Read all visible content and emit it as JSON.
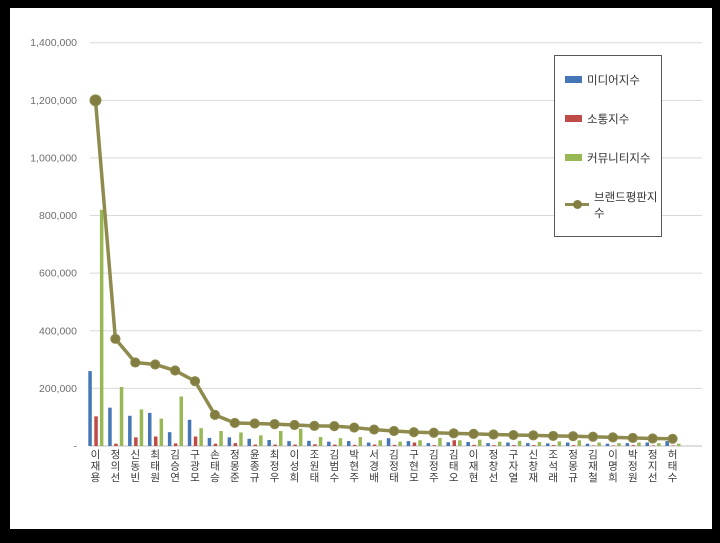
{
  "window": {
    "frame_color": "#000000",
    "background_color": "#ffffff"
  },
  "legend": {
    "border_color": "#595959",
    "items": [
      "미디어지수",
      "소통지수",
      "커뮤니티지수",
      "브랜드평판지수"
    ]
  },
  "axis": {
    "label_color": "#6f6f6f",
    "category_label_color": "#3a3a3a",
    "gridline_color": "#d9d9d9"
  },
  "chart_data": {
    "type": "bar",
    "title": "",
    "xlabel": "",
    "ylabel": "",
    "ylim": [
      0,
      1400000
    ],
    "ytick_interval": 200000,
    "ytick_labels_bottom_to_top": [
      "-",
      "200,000",
      "400,000",
      "600,000",
      "800,000",
      "1,000,000",
      "1,200,000",
      "1,400,000"
    ],
    "grid": true,
    "legend_position": "right-top-overlay",
    "categories": [
      "이재용",
      "정의선",
      "신동빈",
      "최태원",
      "김승연",
      "구광모",
      "손태승",
      "정몽준",
      "윤종규",
      "최정우",
      "이성희",
      "조원태",
      "김범수",
      "박현주",
      "서경배",
      "김정태",
      "구현모",
      "김정주",
      "김태오",
      "이재현",
      "정창선",
      "구자열",
      "신창재",
      "조석래",
      "정몽규",
      "김재철",
      "이명희",
      "박정원",
      "정지선",
      "허태수"
    ],
    "series": [
      {
        "name": "미디어지수",
        "type": "bar",
        "color": "#4576b5",
        "values": [
          260000,
          133000,
          105000,
          115000,
          48000,
          91000,
          28000,
          30000,
          25000,
          21000,
          17000,
          18000,
          15000,
          17000,
          12000,
          27000,
          17000,
          10000,
          13000,
          14000,
          10000,
          12000,
          10000,
          9000,
          12000,
          8000,
          8000,
          10000,
          12000,
          17000
        ]
      },
      {
        "name": "소통지수",
        "type": "bar",
        "color": "#bf4b47",
        "values": [
          103000,
          8000,
          30000,
          33000,
          9000,
          33000,
          8000,
          10000,
          5000,
          5000,
          5000,
          6000,
          5000,
          4000,
          5000,
          4000,
          12000,
          3000,
          20000,
          4000,
          3000,
          3000,
          3000,
          3000,
          3000,
          2000,
          2000,
          3000,
          2000,
          2000
        ]
      },
      {
        "name": "커뮤니티지수",
        "type": "bar",
        "color": "#97b854",
        "values": [
          820000,
          205000,
          127000,
          95000,
          172000,
          62000,
          52000,
          47000,
          37000,
          52000,
          60000,
          31000,
          27000,
          31000,
          20000,
          15000,
          20000,
          28000,
          20000,
          22000,
          15000,
          18000,
          14000,
          16000,
          20000,
          12000,
          10000,
          12000,
          10000,
          8000
        ]
      },
      {
        "name": "브랜드평판지수",
        "type": "line",
        "color": "#8f8b4e",
        "marker_color": "#827e42",
        "values": [
          1200000,
          372000,
          290000,
          283000,
          262000,
          225000,
          108000,
          80000,
          78000,
          76000,
          73000,
          70000,
          69000,
          64000,
          57000,
          52000,
          48000,
          46000,
          44000,
          42000,
          40000,
          38000,
          37000,
          35000,
          34000,
          32000,
          30000,
          28000,
          26000,
          25000
        ]
      }
    ]
  }
}
